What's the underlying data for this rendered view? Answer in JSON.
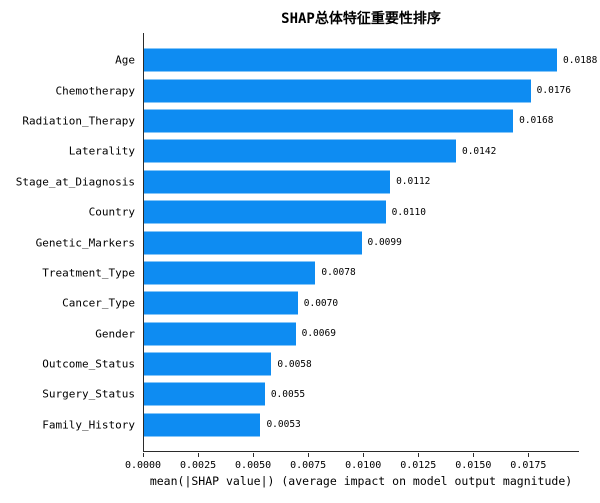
{
  "figure": {
    "background": "#ffffff",
    "spine_color": "#2b2b2b"
  },
  "chart_data": {
    "type": "bar",
    "orientation": "horizontal",
    "title": "SHAP总体特征重要性排序",
    "xlabel": "mean(|SHAP value|) (average impact on model output magnitude)",
    "ylabel": "",
    "categories": [
      "Age",
      "Chemotherapy",
      "Radiation_Therapy",
      "Laterality",
      "Stage_at_Diagnosis",
      "Country",
      "Genetic_Markers",
      "Treatment_Type",
      "Cancer_Type",
      "Gender",
      "Outcome_Status",
      "Surgery_Status",
      "Family_History"
    ],
    "values": [
      0.0188,
      0.0176,
      0.0168,
      0.0142,
      0.0112,
      0.011,
      0.0099,
      0.0078,
      0.007,
      0.0069,
      0.0058,
      0.0055,
      0.0053
    ],
    "value_labels": [
      "0.0188",
      "0.0176",
      "0.0168",
      "0.0142",
      "0.0112",
      "0.0110",
      "0.0099",
      "0.0078",
      "0.0070",
      "0.0069",
      "0.0058",
      "0.0055",
      "0.0053"
    ],
    "x_ticks": [
      "0.0000",
      "0.0025",
      "0.0050",
      "0.0075",
      "0.0100",
      "0.0125",
      "0.0150",
      "0.0175"
    ],
    "x_tick_values": [
      0,
      0.0025,
      0.005,
      0.0075,
      0.01,
      0.0125,
      0.015,
      0.0175
    ],
    "xlim": [
      0,
      0.0198
    ],
    "bar_color": "#0E8CF2",
    "grid": false,
    "legend": null
  }
}
